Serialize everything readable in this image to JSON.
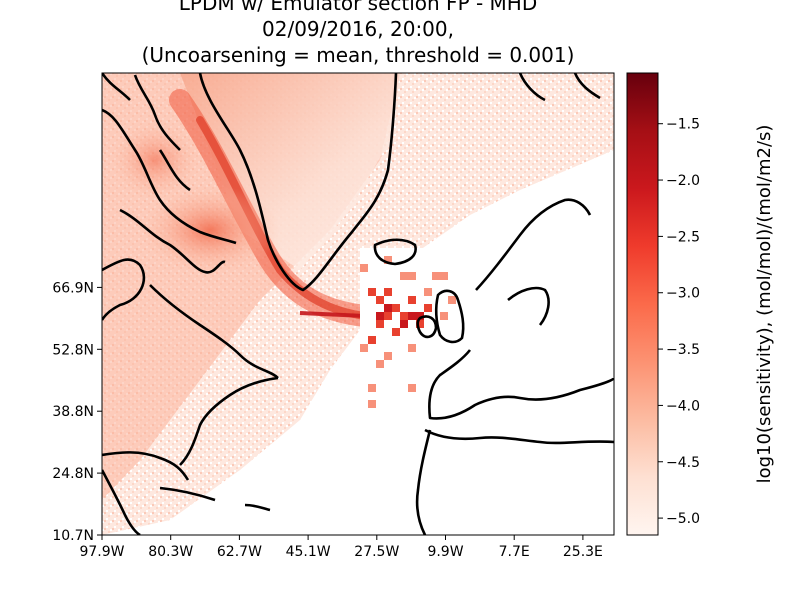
{
  "title": {
    "line1": "LPDM w/ Emulator section FP - MHD",
    "line2": "02/09/2016, 20:00,",
    "line3": "(Uncoarsening = mean, threshold = 0.001)"
  },
  "map": {
    "x_tick_labels": [
      "97.9W",
      "80.3W",
      "62.7W",
      "45.1W",
      "27.5W",
      "9.9W",
      "7.7E",
      "25.3E"
    ],
    "y_tick_labels": [
      "10.7N",
      "24.8N",
      "38.8N",
      "52.8N",
      "66.9N"
    ],
    "coastline_color": "#000000",
    "colormap": "Reds"
  },
  "colorbar": {
    "label": "log10(sensitivity), (mol/mol)/(mol/m2/s)",
    "tick_labels": [
      "−1.5",
      "−2.0",
      "−2.5",
      "−3.0",
      "−3.5",
      "−4.0",
      "−4.5",
      "−5.0"
    ],
    "range": [
      -5.15,
      -1.05
    ],
    "color_low": "#fff5f0",
    "color_high": "#67000d"
  }
}
